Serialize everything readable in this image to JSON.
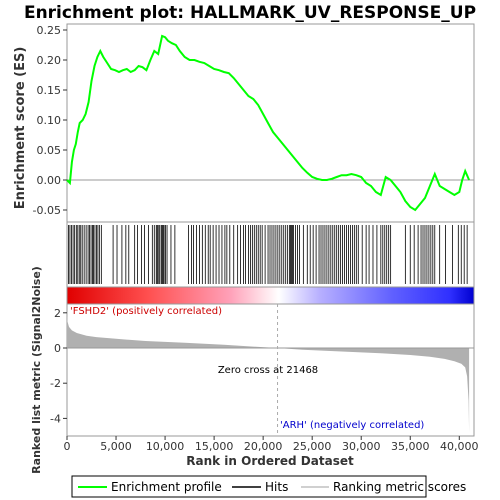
{
  "chart_data": {
    "type": "line",
    "title": "Enrichment plot: HALLMARK_UV_RESPONSE_UP",
    "es_panel": {
      "ylabel": "Enrichment score (ES)",
      "ylim": [
        -0.07,
        0.26
      ],
      "yticks": [
        -0.05,
        0.0,
        0.05,
        0.1,
        0.15,
        0.2,
        0.25
      ],
      "ytick_labels": [
        "-0.05",
        "0.00",
        "0.05",
        "0.10",
        "0.15",
        "0.20",
        "0.25"
      ],
      "series": [
        {
          "name": "Enrichment profile",
          "color": "#00ff00",
          "x": [
            0,
            300,
            500,
            700,
            900,
            1100,
            1300,
            1600,
            1900,
            2200,
            2500,
            2800,
            3100,
            3400,
            3700,
            4100,
            4500,
            4900,
            5300,
            5700,
            6100,
            6500,
            6900,
            7300,
            7700,
            8100,
            8500,
            8900,
            9300,
            9700,
            10000,
            10300,
            10700,
            11100,
            11500,
            12000,
            12500,
            13000,
            13500,
            14000,
            14500,
            15000,
            15500,
            16000,
            16500,
            17000,
            17500,
            18000,
            18500,
            19000,
            19500,
            20000,
            20500,
            21000,
            21500,
            22000,
            22500,
            23000,
            23500,
            24000,
            24500,
            25000,
            25500,
            26000,
            26500,
            27000,
            27500,
            28000,
            28500,
            29000,
            29500,
            30000,
            30500,
            31000,
            31500,
            32000,
            32500,
            33000,
            33500,
            34000,
            34500,
            35000,
            35500,
            36000,
            36500,
            37000,
            37500,
            38000,
            38500,
            39000,
            39500,
            40000,
            40300,
            40600,
            41000
          ],
          "y": [
            0.0,
            -0.005,
            0.03,
            0.05,
            0.06,
            0.08,
            0.095,
            0.1,
            0.11,
            0.13,
            0.165,
            0.19,
            0.205,
            0.215,
            0.205,
            0.195,
            0.185,
            0.183,
            0.18,
            0.183,
            0.185,
            0.18,
            0.183,
            0.19,
            0.188,
            0.183,
            0.2,
            0.215,
            0.21,
            0.24,
            0.238,
            0.232,
            0.228,
            0.225,
            0.215,
            0.205,
            0.2,
            0.2,
            0.197,
            0.195,
            0.19,
            0.185,
            0.183,
            0.18,
            0.178,
            0.17,
            0.16,
            0.15,
            0.14,
            0.135,
            0.125,
            0.11,
            0.095,
            0.08,
            0.07,
            0.06,
            0.05,
            0.04,
            0.03,
            0.02,
            0.012,
            0.005,
            0.002,
            0.0,
            0.0,
            0.002,
            0.005,
            0.008,
            0.008,
            0.01,
            0.008,
            0.005,
            -0.005,
            -0.01,
            -0.02,
            -0.025,
            0.005,
            0.0,
            -0.01,
            -0.02,
            -0.035,
            -0.045,
            -0.05,
            -0.04,
            -0.03,
            -0.01,
            0.01,
            -0.01,
            -0.015,
            -0.02,
            -0.025,
            -0.02,
            0.0,
            0.015,
            0.0
          ]
        }
      ],
      "zero_line": true
    },
    "hits_label": "Hits",
    "hits_positions": [
      150,
      300,
      450,
      620,
      780,
      950,
      1100,
      1250,
      1400,
      1550,
      1750,
      1950,
      2150,
      2300,
      2450,
      2600,
      2700,
      2850,
      3000,
      3150,
      3300,
      3500,
      4700,
      5100,
      5600,
      6000,
      6300,
      6900,
      7200,
      7600,
      7900,
      8300,
      8700,
      8900,
      9100,
      9200,
      9300,
      9450,
      9600,
      9700,
      9800,
      9900,
      10050,
      10200,
      10600,
      11000,
      12400,
      12700,
      12900,
      13200,
      13500,
      13800,
      14100,
      14400,
      14600,
      14900,
      15200,
      15500,
      15800,
      16100,
      16300,
      16600,
      17000,
      17400,
      17700,
      18000,
      18200,
      18500,
      18700,
      18900,
      19100,
      19300,
      19500,
      19700,
      19900,
      20200,
      20500,
      20700,
      20900,
      21100,
      21300,
      21500,
      21700,
      21900,
      22100,
      22300,
      22500,
      22700,
      22800,
      22900,
      23000,
      23100,
      23300,
      23500,
      23700,
      24100,
      24500,
      24800,
      25100,
      25400,
      25700,
      25900,
      26100,
      26300,
      26500,
      26700,
      26900,
      27100,
      27300,
      27500,
      27700,
      27900,
      28100,
      28300,
      28500,
      28700,
      28900,
      29100,
      29300,
      29500,
      29700,
      30100,
      30500,
      30800,
      31200,
      31600,
      32000,
      32200,
      32400,
      32600,
      32800,
      33000,
      34500,
      35000,
      35400,
      35800,
      36100,
      36300,
      36500,
      36700,
      36900,
      37100,
      37300,
      37500,
      38000,
      38600,
      39300,
      39900,
      40200,
      40500,
      40800
    ],
    "ranked_panel": {
      "ylabel": "Ranked list metric (Signal2Noise)",
      "xlabel": "Rank in Ordered Dataset",
      "ylim": [
        -5,
        2.5
      ],
      "yticks": [
        -4,
        -2,
        0,
        2
      ],
      "ytick_labels": [
        "-4",
        "-2",
        "0",
        "2"
      ],
      "xticks": [
        0,
        5000,
        10000,
        15000,
        20000,
        25000,
        30000,
        35000,
        40000
      ],
      "xtick_labels": [
        "0",
        "5,000",
        "10,000",
        "15,000",
        "20,000",
        "25,000",
        "30,000",
        "35,000",
        "40,000"
      ],
      "xlim": [
        0,
        41500
      ],
      "n_genes": 41000,
      "metric_profile": {
        "x": [
          0,
          50,
          200,
          500,
          1000,
          2000,
          3000,
          5000,
          8000,
          12000,
          16000,
          19000,
          21468,
          24000,
          28000,
          32000,
          35000,
          37000,
          38500,
          39500,
          40200,
          40600,
          40800,
          40950,
          41000
        ],
        "y": [
          2.2,
          1.5,
          1.2,
          1.0,
          0.85,
          0.7,
          0.62,
          0.52,
          0.4,
          0.3,
          0.18,
          0.08,
          0.0,
          -0.1,
          -0.2,
          -0.3,
          -0.4,
          -0.5,
          -0.62,
          -0.75,
          -0.9,
          -1.1,
          -1.6,
          -3.0,
          -4.8
        ]
      },
      "zero_cross_label": "Zero cross at 21468",
      "zero_cross": 21468,
      "pos_label": "'FSHD2' (positively correlated)",
      "neg_label": "'ARH' (negatively correlated)"
    },
    "legend": {
      "placement": "bottom",
      "items": [
        {
          "label": "Enrichment profile",
          "color": "#00ff00"
        },
        {
          "label": "Hits",
          "color": "#000000"
        },
        {
          "label": "Ranking metric scores",
          "color": "#c0c0c0"
        }
      ]
    },
    "colors": {
      "profile": "#00ff00",
      "pos_label": "#cc0000",
      "neg_label": "#0000cc",
      "metric_fill": "#b0b0b0",
      "bar_red": "#ff0000",
      "bar_white": "#ffffff",
      "bar_blue": "#0000ff"
    }
  }
}
